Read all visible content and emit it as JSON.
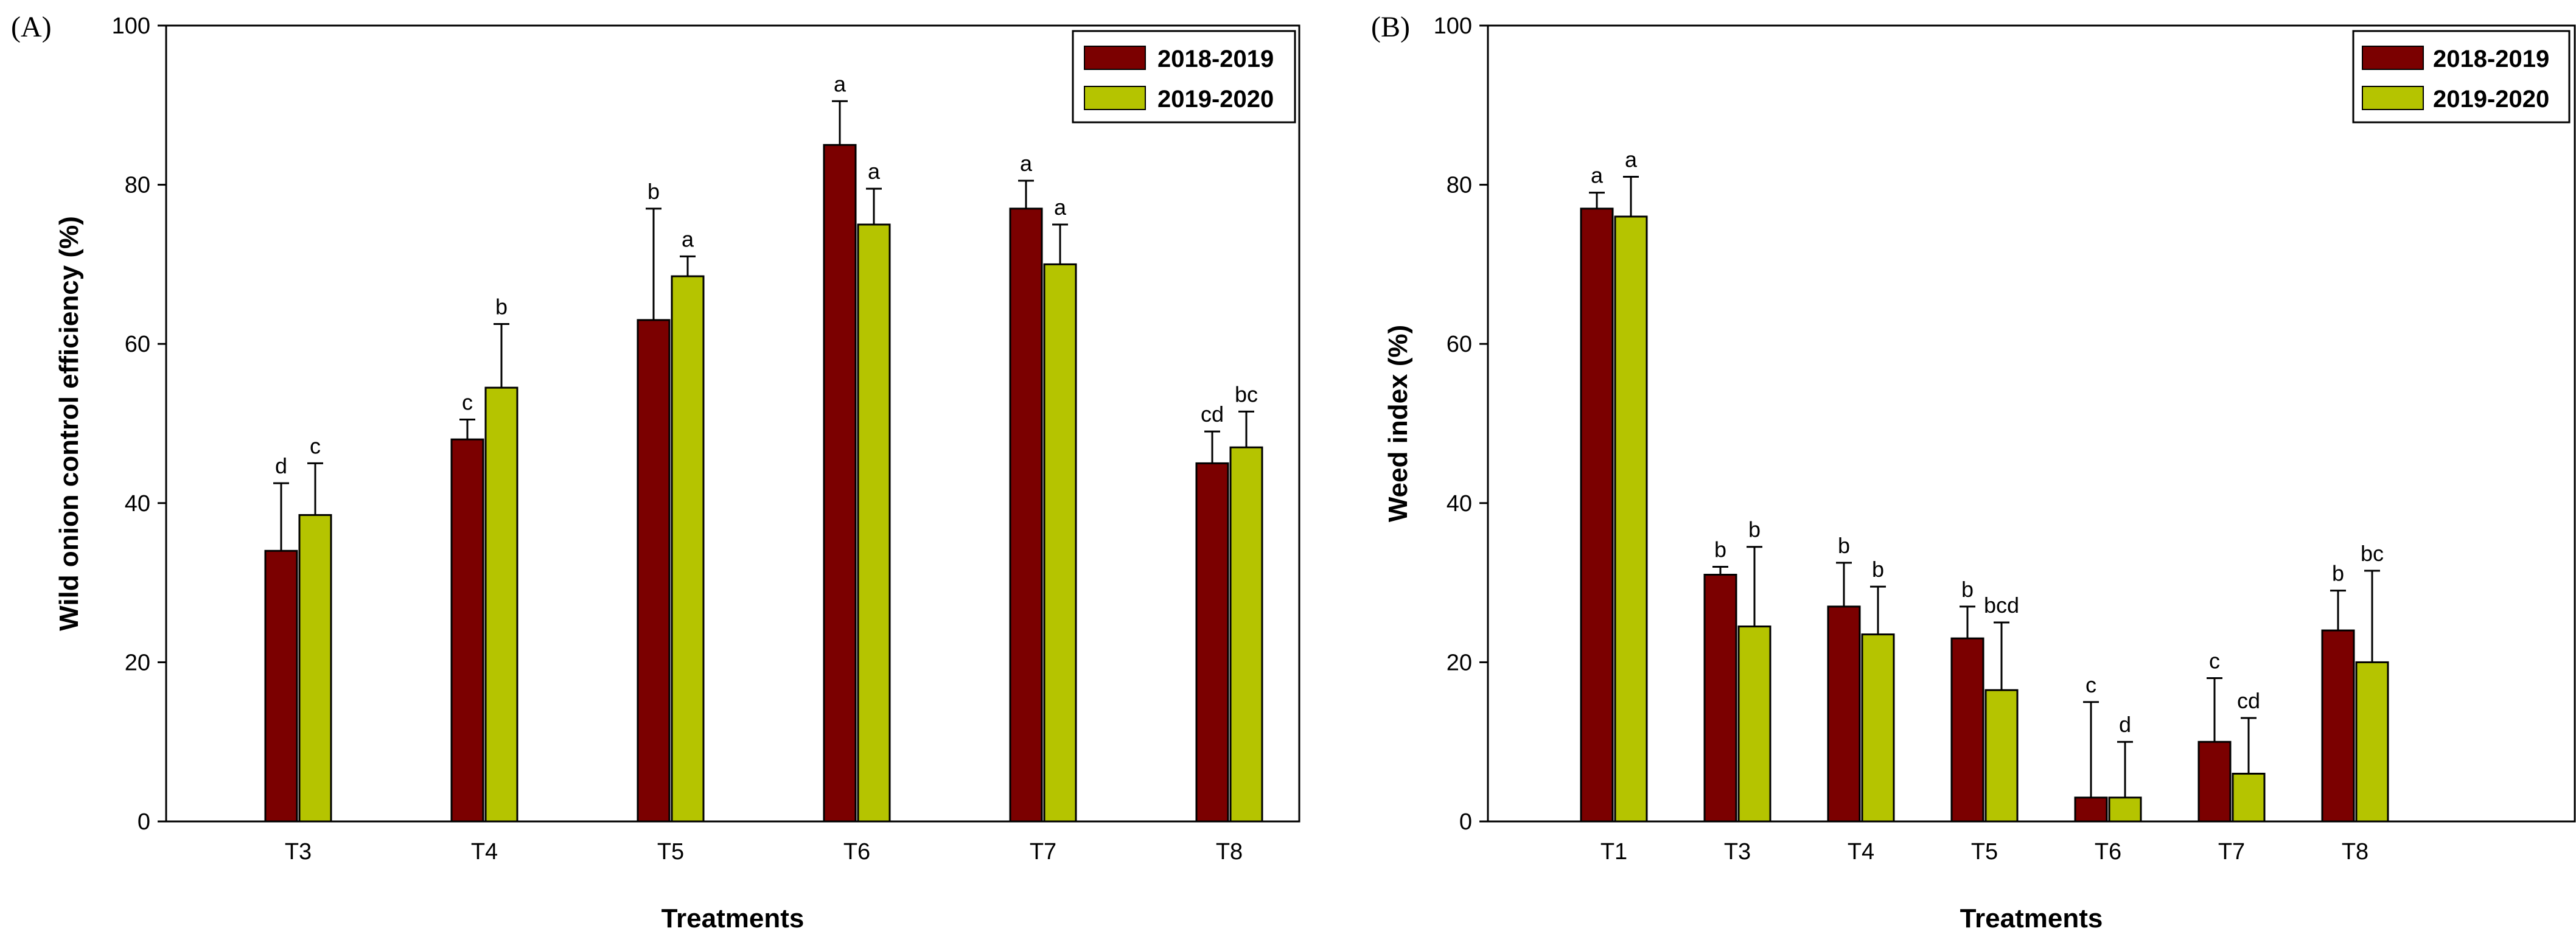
{
  "chart_data": [
    {
      "panel": "(A)",
      "type": "bar",
      "title": "",
      "xlabel": "Treatments",
      "ylabel": "Wild onion control efficiency (%)",
      "ylim": [
        0,
        100
      ],
      "yticks": [
        0,
        20,
        40,
        60,
        80,
        100
      ],
      "grid": false,
      "legend_position": "top-right",
      "categories": [
        "T3",
        "T4",
        "T5",
        "T6",
        "T7",
        "T8"
      ],
      "series": [
        {
          "name": "2018-2019",
          "color": "#7b0000",
          "values": [
            34,
            48,
            63,
            85,
            77,
            45
          ],
          "errors": [
            8.5,
            2.5,
            14,
            5.5,
            3.5,
            4
          ],
          "letters": [
            "d",
            "c",
            "b",
            "a",
            "a",
            "cd"
          ]
        },
        {
          "name": "2019-2020",
          "color": "#b5c400",
          "values": [
            38.5,
            54.5,
            68.5,
            75,
            70,
            47
          ],
          "errors": [
            6.5,
            8,
            2.5,
            4.5,
            5,
            4.5
          ],
          "letters": [
            "c",
            "b",
            "a",
            "a",
            "a",
            "bc"
          ]
        }
      ]
    },
    {
      "panel": "(B)",
      "type": "bar",
      "title": "",
      "xlabel": "Treatments",
      "ylabel": "Weed index (%)",
      "ylim": [
        0,
        100
      ],
      "yticks": [
        0,
        20,
        40,
        60,
        80,
        100
      ],
      "grid": false,
      "legend_position": "top-right",
      "categories": [
        "T1",
        "T3",
        "T4",
        "T5",
        "T6",
        "T7",
        "T8"
      ],
      "series": [
        {
          "name": "2018-2019",
          "color": "#7b0000",
          "values": [
            77,
            31,
            27,
            23,
            3,
            10,
            24
          ],
          "errors": [
            2,
            1,
            5.5,
            4,
            12,
            8,
            5
          ],
          "letters": [
            "a",
            "b",
            "b",
            "b",
            "c",
            "c",
            "b"
          ]
        },
        {
          "name": "2019-2020",
          "color": "#b5c400",
          "values": [
            76,
            24.5,
            23.5,
            16.5,
            3,
            6,
            20
          ],
          "errors": [
            5,
            10,
            6,
            8.5,
            7,
            7,
            11.5
          ],
          "letters": [
            "a",
            "b",
            "b",
            "bcd",
            "d",
            "cd",
            "bc"
          ]
        }
      ]
    }
  ]
}
